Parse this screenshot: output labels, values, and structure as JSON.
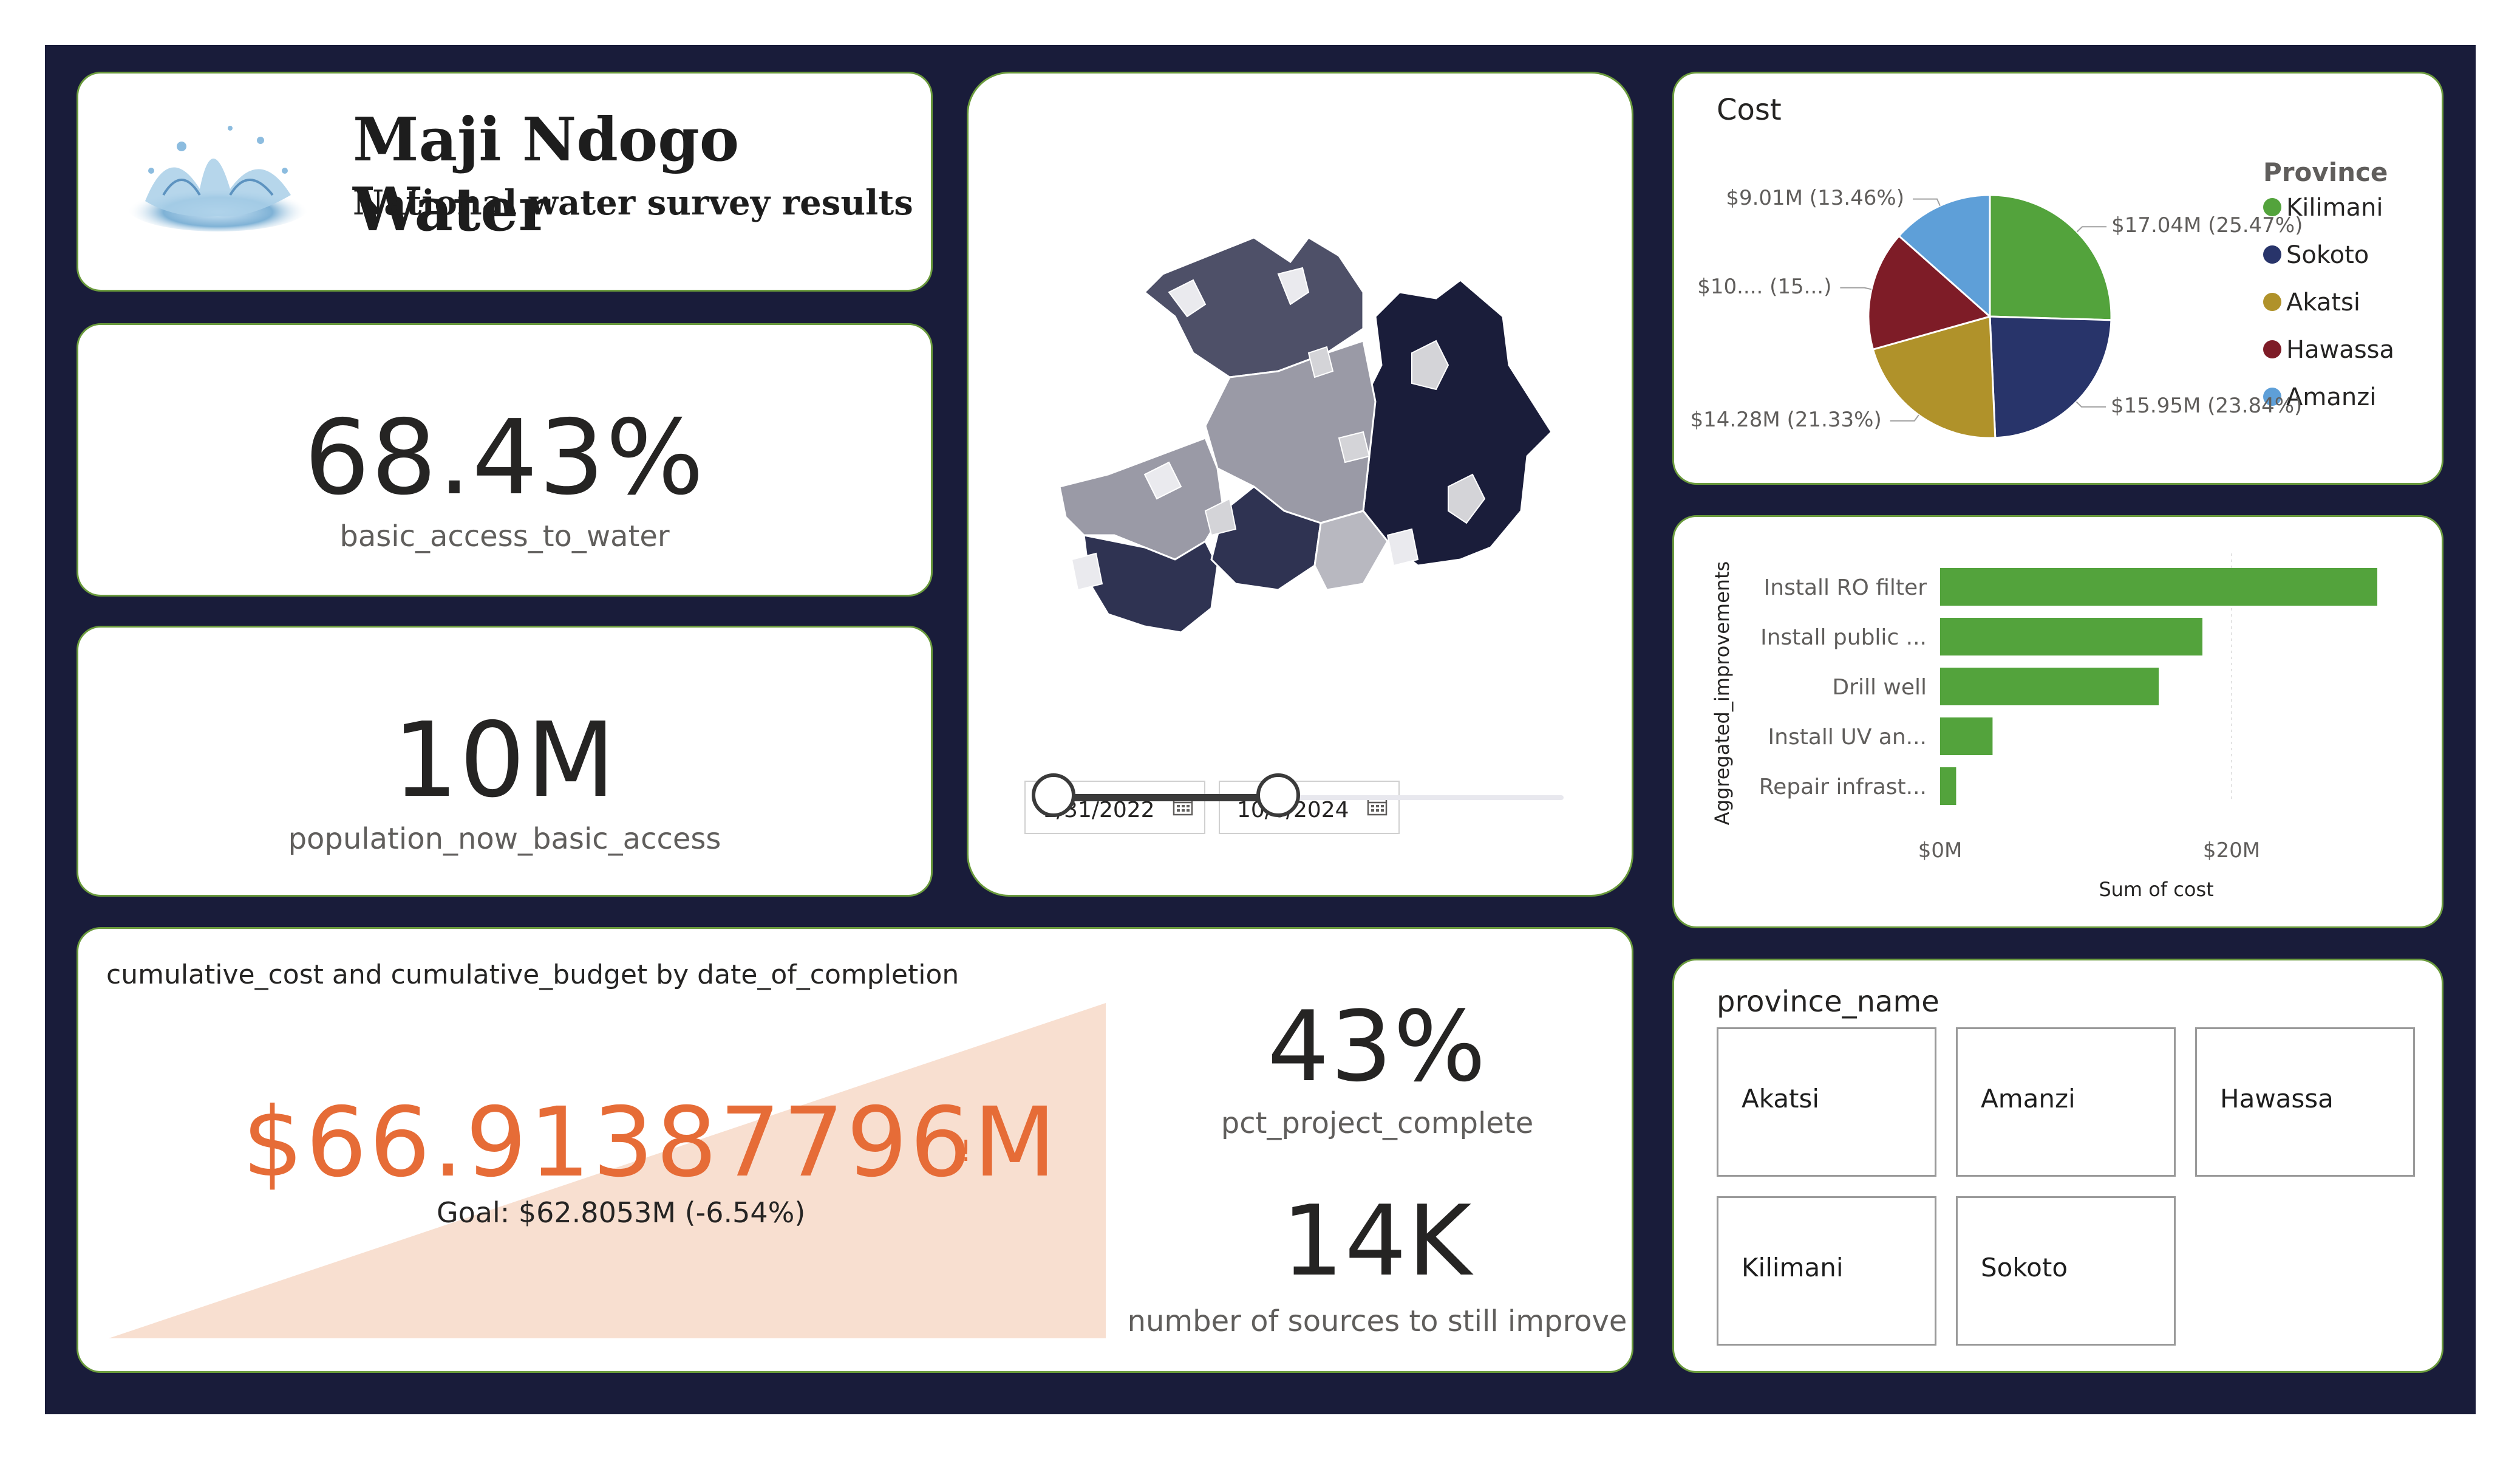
{
  "header": {
    "title": "Maji Ndogo Water",
    "subtitle": "National water survey results",
    "logo_icon": "water-splash-icon"
  },
  "kpis": {
    "basic_access": {
      "value": "68.43%",
      "label": "basic_access_to_water"
    },
    "population": {
      "value": "10M",
      "label": "population_now_basic_access"
    },
    "pct_complete": {
      "value": "43%",
      "label": "pct_project_complete"
    },
    "sources": {
      "value": "14K",
      "label": "number of sources to still improve"
    }
  },
  "date_filter": {
    "start": "1/31/2022",
    "end": "10/6/2024",
    "range_fraction": [
      0,
      0.44
    ]
  },
  "cumulative": {
    "title": "cumulative_cost and cumulative_budget by date_of_completion",
    "value": "$66.91387796M",
    "alert": "!",
    "goal": "Goal: $62.8053M (-6.54%)",
    "color": "#e66c37",
    "area_color": "#f8dfd0"
  },
  "province_slicer": {
    "title": "province_name",
    "items": [
      "Akatsi",
      "Amanzi",
      "Hawassa",
      "Kilimani",
      "Sokoto"
    ]
  },
  "map": {
    "colors": [
      "#1a1d3a",
      "#2f3352",
      "#4e5068",
      "#9a9aa6",
      "#b8b8c0",
      "#d4d4d8",
      "#eaeaee"
    ]
  },
  "chart_data": [
    {
      "type": "pie",
      "title": "Cost",
      "legend_title": "Province",
      "legend_position": "right",
      "slices": [
        {
          "name": "Kilimani",
          "value": 17.04,
          "label": "$17.04M (25.47%)",
          "color": "#53a33c"
        },
        {
          "name": "Sokoto",
          "value": 15.95,
          "label": "$15.95M (23.84%)",
          "color": "#28346a"
        },
        {
          "name": "Akatsi",
          "value": 14.28,
          "label": "$14.28M (21.33%)",
          "color": "#b0922a"
        },
        {
          "name": "Hawassa",
          "value": 10.64,
          "label": "$10.... (15...)",
          "color": "#7e1c27"
        },
        {
          "name": "Amanzi",
          "value": 9.01,
          "label": "$9.01M (13.46%)",
          "color": "#5e9fd8"
        }
      ]
    },
    {
      "type": "bar",
      "orientation": "horizontal",
      "categories": [
        "Install RO filter",
        "Install public ...",
        "Drill well",
        "Install UV an...",
        "Repair infrast..."
      ],
      "values": [
        30,
        18,
        15,
        3.6,
        1.1
      ],
      "ylabel": "Aggregated_improvements",
      "xlabel": "Sum of cost",
      "xticks": [
        "$0M",
        "$20M"
      ],
      "xlim": [
        0,
        30
      ],
      "color": "#53a33c",
      "grid": true
    }
  ]
}
